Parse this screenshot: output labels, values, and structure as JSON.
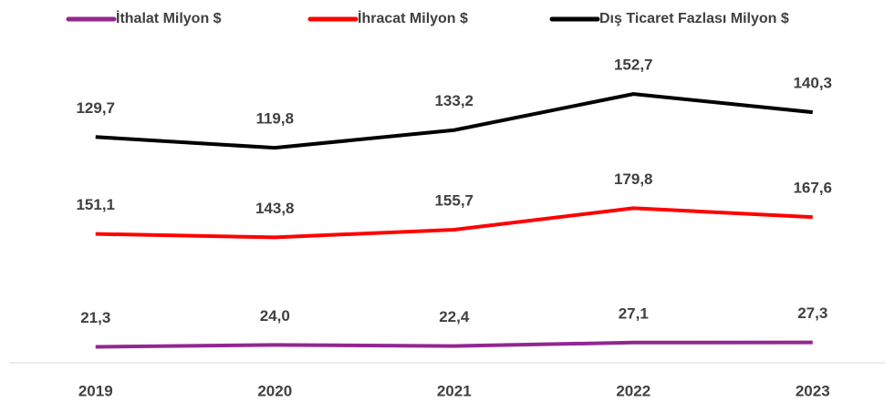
{
  "chart_data": {
    "type": "line",
    "stacked": true,
    "categories": [
      "2019",
      "2020",
      "2021",
      "2022",
      "2023"
    ],
    "series": [
      {
        "name": "İthalat Milyon $",
        "color": "#92278f",
        "values": [
          21.3,
          24.0,
          22.4,
          27.1,
          27.3
        ],
        "value_labels": [
          "21,3",
          "24,0",
          "22,4",
          "27,1",
          "27,3"
        ]
      },
      {
        "name": "İhracat Milyon $",
        "color": "#ff0000",
        "values": [
          151.1,
          143.8,
          155.7,
          179.8,
          167.6
        ],
        "value_labels": [
          "151,1",
          "143,8",
          "155,7",
          "179,8",
          "167,6"
        ]
      },
      {
        "name": "Dış Ticaret Fazlası Milyon $",
        "color": "#000000",
        "values": [
          129.7,
          119.8,
          133.2,
          152.7,
          140.3
        ],
        "value_labels": [
          "129,7",
          "119,8",
          "133,2",
          "152,7",
          "140,3"
        ]
      }
    ],
    "ylim": [
      0,
      450
    ],
    "legend": "top"
  }
}
